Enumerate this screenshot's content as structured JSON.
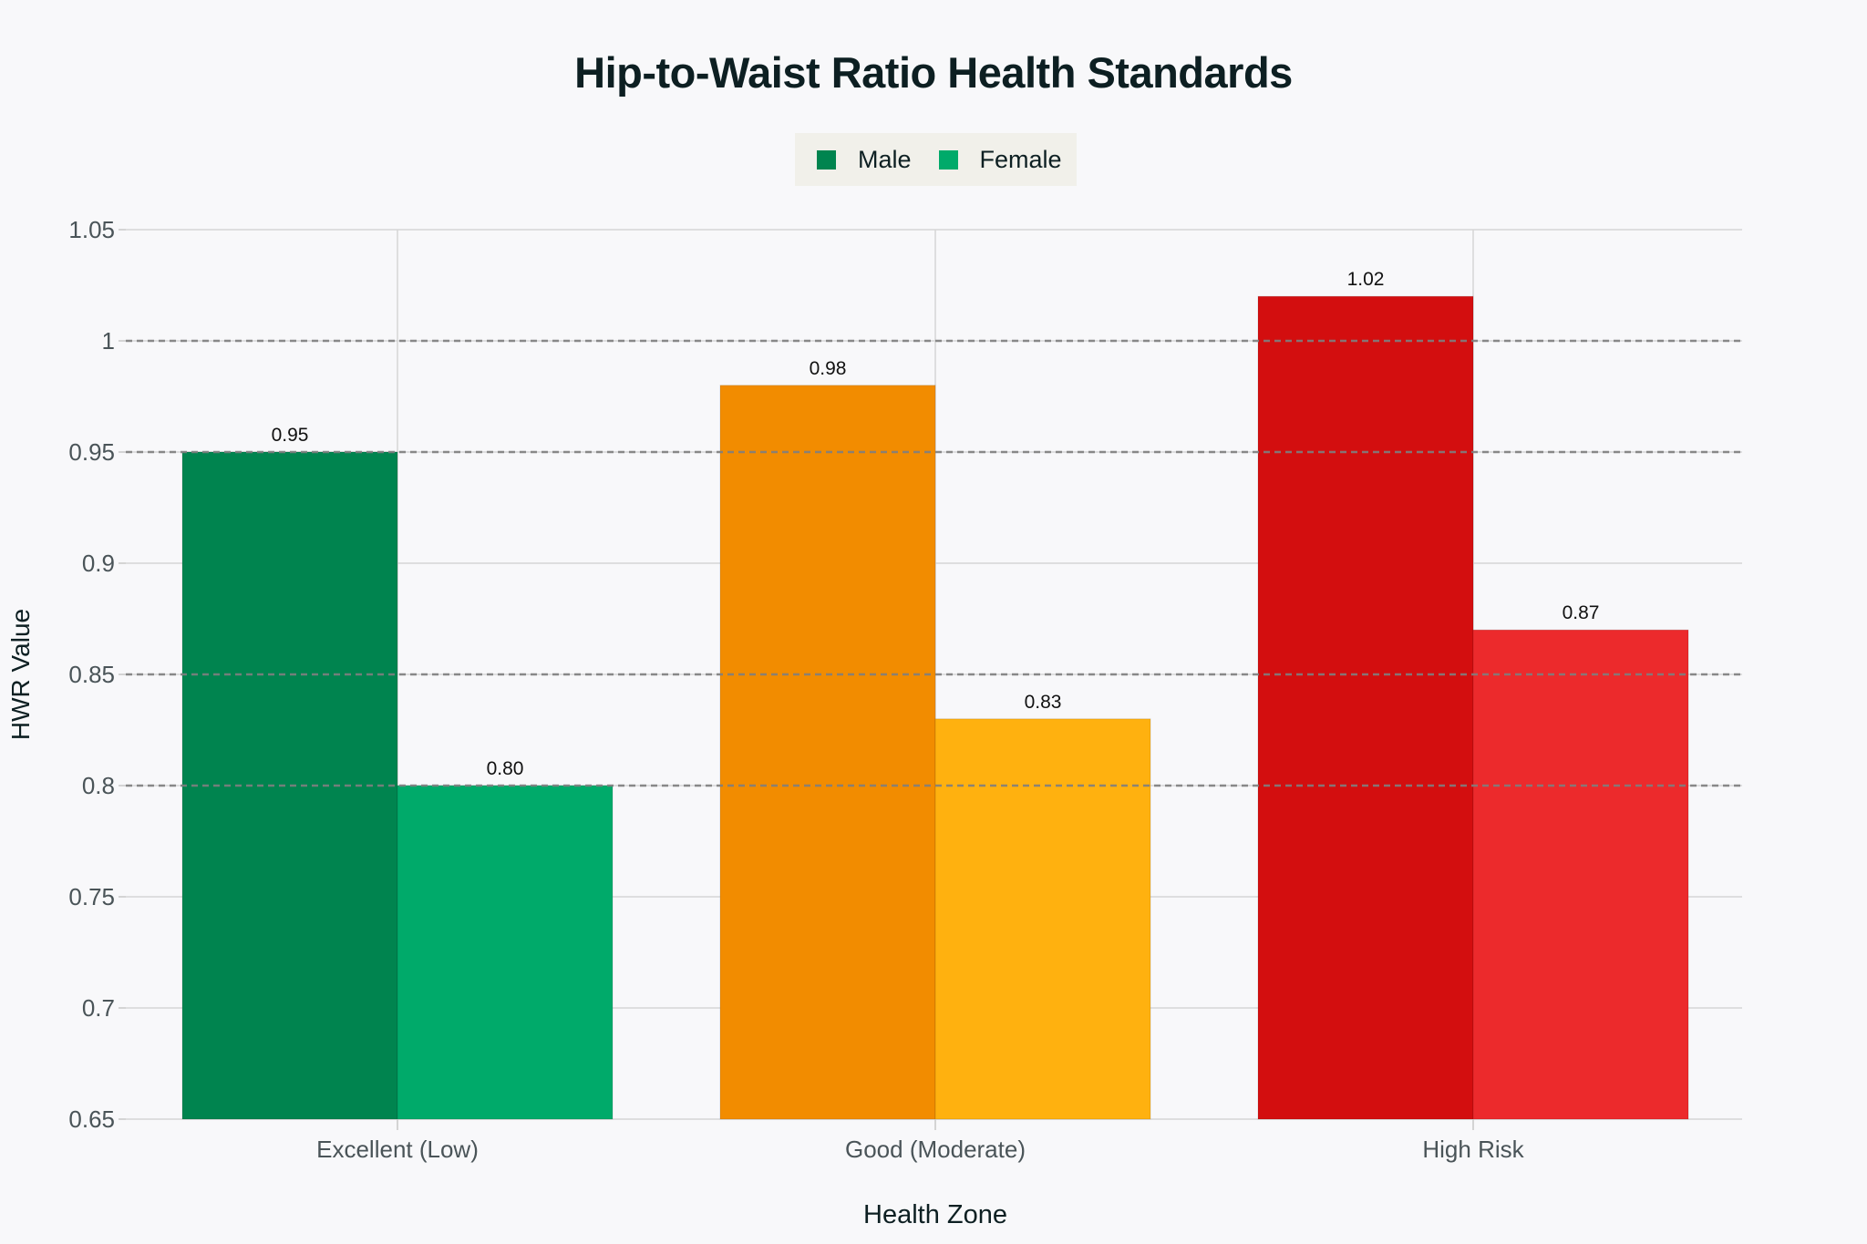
{
  "title": "Hip-to-Waist Ratio Health Standards",
  "legend": {
    "items": [
      {
        "label": "Male",
        "color": "#00844f"
      },
      {
        "label": "Female",
        "color": "#00aa6a"
      }
    ]
  },
  "axes": {
    "xlabel": "Health Zone",
    "ylabel": "HWR Value",
    "yticks": [
      "0.65",
      "0.7",
      "0.75",
      "0.8",
      "0.85",
      "0.9",
      "0.95",
      "1",
      "1.05"
    ]
  },
  "chart_data": {
    "type": "bar",
    "title": "Hip-to-Waist Ratio Health Standards",
    "xlabel": "Health Zone",
    "ylabel": "HWR Value",
    "ylim": [
      0.65,
      1.05
    ],
    "categories": [
      "Excellent (Low)",
      "Good (Moderate)",
      "High Risk"
    ],
    "series": [
      {
        "name": "Male",
        "values": [
          0.95,
          0.98,
          1.02
        ],
        "labels": [
          "0.95",
          "0.98",
          "1.02"
        ],
        "colors": [
          "#00844f",
          "#f28c00",
          "#d30e0f"
        ]
      },
      {
        "name": "Female",
        "values": [
          0.8,
          0.83,
          0.87
        ],
        "labels": [
          "0.80",
          "0.83",
          "0.87"
        ],
        "colors": [
          "#00aa6a",
          "#ffb10f",
          "#ec2a2c"
        ]
      }
    ],
    "reference_lines": [
      0.8,
      0.85,
      0.95,
      1.0
    ],
    "yticks": [
      0.65,
      0.7,
      0.75,
      0.8,
      0.85,
      0.9,
      0.95,
      1,
      1.05
    ],
    "grid": true,
    "legend_position": "top-center"
  }
}
